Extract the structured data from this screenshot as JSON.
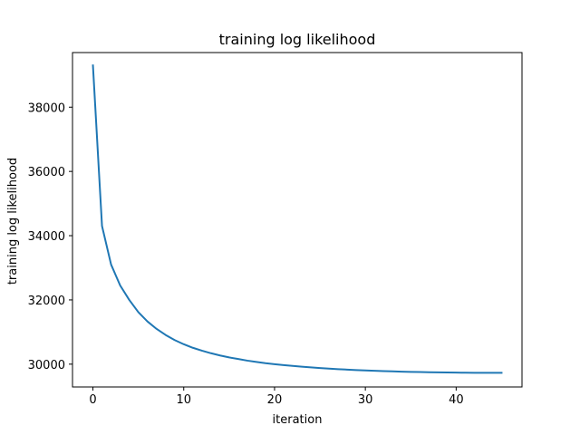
{
  "chart_data": {
    "type": "line",
    "title": "training log likelihood",
    "xlabel": "iteration",
    "ylabel": "training log likelihood",
    "xlim": [
      -2.25,
      47.25
    ],
    "ylim": [
      29290,
      39700
    ],
    "xticks": [
      0,
      10,
      20,
      30,
      40
    ],
    "yticks": [
      30000,
      32000,
      34000,
      36000,
      38000
    ],
    "grid": false,
    "series": [
      {
        "color": "#1f77b4",
        "x": [
          0,
          1,
          2,
          3,
          4,
          5,
          6,
          7,
          8,
          9,
          10,
          11,
          12,
          13,
          14,
          15,
          16,
          17,
          18,
          19,
          20,
          21,
          22,
          23,
          24,
          25,
          26,
          27,
          28,
          29,
          30,
          31,
          32,
          33,
          34,
          35,
          36,
          37,
          38,
          39,
          40,
          41,
          42,
          43,
          44,
          45
        ],
        "values": [
          39300,
          34300,
          33100,
          32450,
          32000,
          31620,
          31330,
          31100,
          30910,
          30750,
          30620,
          30510,
          30420,
          30340,
          30270,
          30210,
          30160,
          30110,
          30070,
          30030,
          30000,
          29970,
          29945,
          29920,
          29900,
          29880,
          29860,
          29845,
          29830,
          29815,
          29805,
          29795,
          29785,
          29775,
          29767,
          29760,
          29754,
          29748,
          29744,
          29740,
          29737,
          29734,
          29732,
          29731,
          29730,
          29730
        ]
      }
    ]
  }
}
